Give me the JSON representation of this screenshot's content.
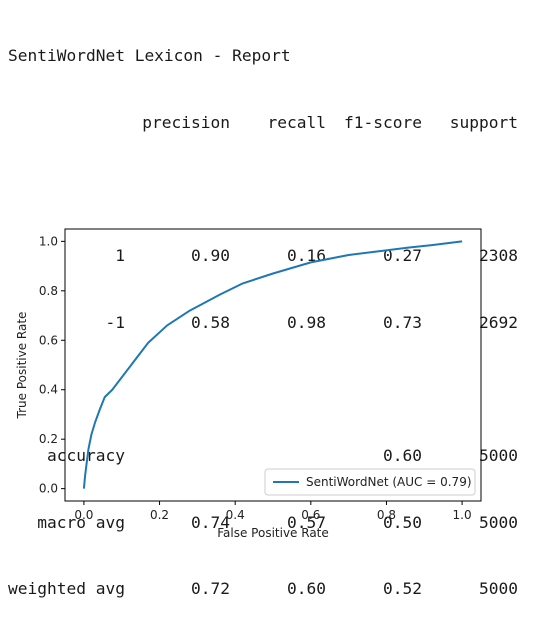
{
  "report": {
    "title": "SentiWordNet Lexicon - Report",
    "headers": [
      "precision",
      "recall",
      "f1-score",
      "support"
    ],
    "class_rows": [
      {
        "label": "1",
        "precision": "0.90",
        "recall": "0.16",
        "f1": "0.27",
        "support": "2308"
      },
      {
        "label": "-1",
        "precision": "0.58",
        "recall": "0.98",
        "f1": "0.73",
        "support": "2692"
      }
    ],
    "summary_rows": [
      {
        "label": "accuracy",
        "precision": "",
        "recall": "",
        "f1": "0.60",
        "support": "5000"
      },
      {
        "label": "macro avg",
        "precision": "0.74",
        "recall": "0.57",
        "f1": "0.50",
        "support": "5000"
      },
      {
        "label": "weighted avg",
        "precision": "0.72",
        "recall": "0.60",
        "f1": "0.52",
        "support": "5000"
      }
    ]
  },
  "chart_data": {
    "type": "line",
    "xlabel": "False Positive Rate",
    "ylabel": "True Positive Rate",
    "xlim": [
      -0.05,
      1.05
    ],
    "ylim": [
      -0.05,
      1.05
    ],
    "xticks": [
      "0.0",
      "0.2",
      "0.4",
      "0.6",
      "0.8",
      "1.0"
    ],
    "yticks": [
      "0.0",
      "0.2",
      "0.4",
      "0.6",
      "0.8",
      "1.0"
    ],
    "grid": false,
    "legend_position": "lower-right",
    "series": [
      {
        "name": "SentiWordNet (AUC = 0.79)",
        "color": "#1f77b4",
        "x": [
          0.0,
          0.003,
          0.007,
          0.012,
          0.02,
          0.03,
          0.042,
          0.055,
          0.075,
          0.1,
          0.13,
          0.17,
          0.22,
          0.28,
          0.36,
          0.42,
          0.5,
          0.6,
          0.7,
          0.78,
          0.86,
          0.92,
          1.0
        ],
        "y": [
          0.0,
          0.05,
          0.1,
          0.16,
          0.22,
          0.27,
          0.32,
          0.37,
          0.4,
          0.45,
          0.51,
          0.59,
          0.66,
          0.72,
          0.785,
          0.83,
          0.87,
          0.915,
          0.945,
          0.96,
          0.975,
          0.985,
          1.0
        ]
      }
    ]
  }
}
